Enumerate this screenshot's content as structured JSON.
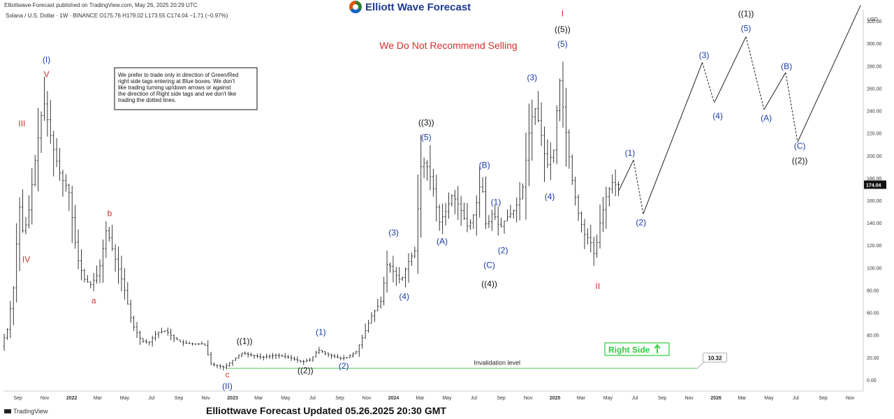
{
  "header": {
    "published": "Elliottwave-Forecast published on TradingView.com, May 26, 2025 20:29 UTC",
    "symbol_line": "Solana / U.S. Dollar · 1W · BINANCE  O175.76  H179.02  L173.55  C174.04  −1.71 (−0.97%)",
    "logo_text": "Elliott Wave Forecast"
  },
  "footer": {
    "title": "Elliottwave Forecast Updated 05.26.2025 20:30 GMT",
    "platform": "TradingView"
  },
  "colors": {
    "candle": "#222222",
    "red_label": "#d32f2f",
    "blue_label": "#1a3aa8",
    "black_label": "#111111",
    "invalidation_line": "#7bd67b",
    "right_side": "#2ecc40"
  },
  "chart_data": {
    "type": "candlestick",
    "y_axis_unit": "USD",
    "y_ticks": [
      "0.00",
      "20.00",
      "40.00",
      "60.00",
      "80.00",
      "100.00",
      "120.00",
      "140.00",
      "160.00",
      "180.00",
      "200.00",
      "220.00",
      "240.00",
      "260.00",
      "280.00",
      "300.00",
      "320.00"
    ],
    "ylim": [
      -10,
      330
    ],
    "x_ticks": [
      "Sep",
      "Nov",
      "2022",
      "Mar",
      "May",
      "Jul",
      "Sep",
      "Nov",
      "2023",
      "Mar",
      "May",
      "Jul",
      "Sep",
      "Nov",
      "2024",
      "Mar",
      "May",
      "Jul",
      "Sep",
      "Nov",
      "2025",
      "Mar",
      "May",
      "Jul",
      "Sep",
      "Nov",
      "2026",
      "Mar",
      "May",
      "Jul",
      "Sep",
      "Nov"
    ],
    "x_tick_dates": [
      "2021-09-01",
      "2021-11-01",
      "2022-01-01",
      "2022-03-01",
      "2022-05-01",
      "2022-07-01",
      "2022-09-01",
      "2022-11-01",
      "2023-01-01",
      "2023-03-01",
      "2023-05-01",
      "2023-07-01",
      "2023-09-01",
      "2023-11-01",
      "2024-01-01",
      "2024-03-01",
      "2024-05-01",
      "2024-07-01",
      "2024-09-01",
      "2024-11-01",
      "2025-01-01",
      "2025-03-01",
      "2025-05-01",
      "2025-07-01",
      "2025-09-01",
      "2025-11-01",
      "2026-01-01",
      "2026-03-01",
      "2026-05-01",
      "2026-07-01",
      "2026-09-01",
      "2026-11-01"
    ],
    "xlim": [
      "2021-08-01",
      "2026-12-01"
    ],
    "last_price": "174.04",
    "price_path": [
      [
        "2021-08-01",
        30
      ],
      [
        "2021-08-15",
        45
      ],
      [
        "2021-09-01",
        90
      ],
      [
        "2021-09-10",
        160
      ],
      [
        "2021-09-20",
        130
      ],
      [
        "2021-10-01",
        145
      ],
      [
        "2021-10-15",
        190
      ],
      [
        "2021-11-05",
        250
      ],
      [
        "2021-11-25",
        210
      ],
      [
        "2021-12-15",
        180
      ],
      [
        "2022-01-01",
        170
      ],
      [
        "2022-01-20",
        110
      ],
      [
        "2022-02-05",
        90
      ],
      [
        "2022-02-20",
        85
      ],
      [
        "2022-03-10",
        95
      ],
      [
        "2022-03-28",
        135
      ],
      [
        "2022-04-15",
        110
      ],
      [
        "2022-05-05",
        85
      ],
      [
        "2022-05-25",
        50
      ],
      [
        "2022-06-15",
        35
      ],
      [
        "2022-07-01",
        33
      ],
      [
        "2022-07-20",
        42
      ],
      [
        "2022-08-10",
        44
      ],
      [
        "2022-08-25",
        38
      ],
      [
        "2022-09-15",
        33
      ],
      [
        "2022-10-10",
        32
      ],
      [
        "2022-11-05",
        32
      ],
      [
        "2022-11-20",
        14
      ],
      [
        "2022-12-20",
        11
      ],
      [
        "2023-01-10",
        18
      ],
      [
        "2023-01-28",
        24
      ],
      [
        "2023-02-20",
        22
      ],
      [
        "2023-03-15",
        20
      ],
      [
        "2023-04-15",
        22
      ],
      [
        "2023-05-15",
        20
      ],
      [
        "2023-06-15",
        16
      ],
      [
        "2023-07-05",
        18
      ],
      [
        "2023-07-20",
        27
      ],
      [
        "2023-08-15",
        22
      ],
      [
        "2023-09-10",
        19
      ],
      [
        "2023-09-25",
        20
      ],
      [
        "2023-10-15",
        25
      ],
      [
        "2023-11-01",
        40
      ],
      [
        "2023-11-20",
        58
      ],
      [
        "2023-12-10",
        70
      ],
      [
        "2023-12-25",
        105
      ],
      [
        "2024-01-10",
        95
      ],
      [
        "2024-01-25",
        88
      ],
      [
        "2024-02-10",
        105
      ],
      [
        "2024-02-25",
        115
      ],
      [
        "2024-03-10",
        190
      ],
      [
        "2024-03-20",
        195
      ],
      [
        "2024-04-05",
        175
      ],
      [
        "2024-04-20",
        140
      ],
      [
        "2024-05-05",
        150
      ],
      [
        "2024-05-20",
        165
      ],
      [
        "2024-06-05",
        155
      ],
      [
        "2024-06-25",
        135
      ],
      [
        "2024-07-10",
        150
      ],
      [
        "2024-07-25",
        180
      ],
      [
        "2024-08-05",
        135
      ],
      [
        "2024-08-20",
        150
      ],
      [
        "2024-09-05",
        135
      ],
      [
        "2024-09-20",
        145
      ],
      [
        "2024-10-05",
        150
      ],
      [
        "2024-10-25",
        165
      ],
      [
        "2024-11-10",
        220
      ],
      [
        "2024-11-22",
        245
      ],
      [
        "2024-12-05",
        225
      ],
      [
        "2024-12-20",
        190
      ],
      [
        "2025-01-05",
        205
      ],
      [
        "2025-01-18",
        270
      ],
      [
        "2025-01-30",
        230
      ],
      [
        "2025-02-15",
        180
      ],
      [
        "2025-03-01",
        150
      ],
      [
        "2025-03-15",
        130
      ],
      [
        "2025-03-28",
        125
      ],
      [
        "2025-04-08",
        110
      ],
      [
        "2025-04-20",
        140
      ],
      [
        "2025-05-05",
        165
      ],
      [
        "2025-05-18",
        176
      ],
      [
        "2025-05-26",
        174
      ]
    ],
    "wave_labels": [
      {
        "text": "(I)",
        "date": "2021-11-05",
        "price": 283,
        "color": "blue"
      },
      {
        "text": "V",
        "date": "2021-11-05",
        "price": 270,
        "color": "red"
      },
      {
        "text": "III",
        "date": "2021-09-10",
        "price": 226,
        "color": "red"
      },
      {
        "text": "IV",
        "date": "2021-09-20",
        "price": 105,
        "color": "red"
      },
      {
        "text": "b",
        "date": "2022-03-28",
        "price": 146,
        "color": "red"
      },
      {
        "text": "a",
        "date": "2022-02-20",
        "price": 68,
        "color": "red"
      },
      {
        "text": "c",
        "date": "2022-12-20",
        "price": 2,
        "color": "red"
      },
      {
        "text": "(II)",
        "date": "2022-12-20",
        "price": -8,
        "color": "blue"
      },
      {
        "text": "((1))",
        "date": "2023-01-28",
        "price": 32,
        "color": "black"
      },
      {
        "text": "((2))",
        "date": "2023-06-15",
        "price": 6,
        "color": "black"
      },
      {
        "text": "(1)",
        "date": "2023-07-20",
        "price": 40,
        "color": "blue"
      },
      {
        "text": "(2)",
        "date": "2023-09-10",
        "price": 10,
        "color": "blue"
      },
      {
        "text": "(3)",
        "date": "2024-01-01",
        "price": 129,
        "color": "blue"
      },
      {
        "text": "(4)",
        "date": "2024-01-25",
        "price": 72,
        "color": "blue"
      },
      {
        "text": "((3))",
        "date": "2024-03-15",
        "price": 227,
        "color": "black"
      },
      {
        "text": "(5)",
        "date": "2024-03-15",
        "price": 214,
        "color": "blue"
      },
      {
        "text": "(A)",
        "date": "2024-04-20",
        "price": 121,
        "color": "blue"
      },
      {
        "text": "(B)",
        "date": "2024-07-25",
        "price": 189,
        "color": "blue"
      },
      {
        "text": "(C)",
        "date": "2024-08-05",
        "price": 100,
        "color": "blue"
      },
      {
        "text": "((4))",
        "date": "2024-08-05",
        "price": 83,
        "color": "black"
      },
      {
        "text": "(1)",
        "date": "2024-08-20",
        "price": 156,
        "color": "blue"
      },
      {
        "text": "(2)",
        "date": "2024-09-05",
        "price": 113,
        "color": "blue"
      },
      {
        "text": "(3)",
        "date": "2024-11-10",
        "price": 267,
        "color": "blue"
      },
      {
        "text": "(4)",
        "date": "2024-12-20",
        "price": 161,
        "color": "blue"
      },
      {
        "text": "I",
        "date": "2025-01-18",
        "price": 324,
        "color": "red"
      },
      {
        "text": "((5))",
        "date": "2025-01-18",
        "price": 310,
        "color": "black"
      },
      {
        "text": "(5)",
        "date": "2025-01-18",
        "price": 297,
        "color": "blue"
      },
      {
        "text": "II",
        "date": "2025-04-08",
        "price": 81,
        "color": "red"
      },
      {
        "text": "(1)",
        "date": "2025-06-20",
        "price": 200,
        "color": "blue"
      },
      {
        "text": "(2)",
        "date": "2025-07-15",
        "price": 138,
        "color": "blue"
      },
      {
        "text": "(3)",
        "date": "2025-12-05",
        "price": 287,
        "color": "blue"
      },
      {
        "text": "(4)",
        "date": "2026-01-05",
        "price": 233,
        "color": "blue"
      },
      {
        "text": "((1))",
        "date": "2026-03-10",
        "price": 324,
        "color": "black"
      },
      {
        "text": "(5)",
        "date": "2026-03-10",
        "price": 311,
        "color": "blue"
      },
      {
        "text": "(A)",
        "date": "2026-04-25",
        "price": 231,
        "color": "blue"
      },
      {
        "text": "(B)",
        "date": "2026-06-10",
        "price": 277,
        "color": "blue"
      },
      {
        "text": "(C)",
        "date": "2026-07-10",
        "price": 206,
        "color": "blue"
      },
      {
        "text": "((2))",
        "date": "2026-07-10",
        "price": 193,
        "color": "black"
      }
    ],
    "projection": {
      "segments": [
        {
          "style": "solid",
          "points": [
            [
              "2025-05-26",
              169
            ],
            [
              "2025-06-28",
              196
            ]
          ]
        },
        {
          "style": "dashed",
          "points": [
            [
              "2025-06-28",
              196
            ],
            [
              "2025-07-20",
              148
            ]
          ]
        },
        {
          "style": "solid",
          "points": [
            [
              "2025-07-20",
              148
            ],
            [
              "2025-12-01",
              283
            ]
          ]
        },
        {
          "style": "dashed",
          "points": [
            [
              "2025-12-01",
              283
            ],
            [
              "2025-12-28",
              247
            ]
          ]
        },
        {
          "style": "solid",
          "points": [
            [
              "2025-12-28",
              247
            ],
            [
              "2026-03-10",
              306
            ]
          ]
        },
        {
          "style": "dashed",
          "points": [
            [
              "2026-03-10",
              306
            ],
            [
              "2026-04-20",
              241
            ]
          ]
        },
        {
          "style": "solid",
          "points": [
            [
              "2026-04-20",
              241
            ],
            [
              "2026-06-08",
              274
            ]
          ]
        },
        {
          "style": "dashed",
          "points": [
            [
              "2026-06-08",
              274
            ],
            [
              "2026-07-05",
              212
            ]
          ]
        },
        {
          "style": "solid",
          "points": [
            [
              "2026-07-05",
              212
            ],
            [
              "2026-11-25",
              334
            ]
          ]
        }
      ]
    },
    "invalidation": {
      "label": "Invalidation level",
      "value_label": "10.32",
      "price": 10.32,
      "start": "2022-12-20",
      "end": "2025-11-20",
      "label_date": "2024-07-01"
    },
    "right_side_label": "Right Side",
    "annotations": {
      "disclaimer": "We Do Not Recommend Selling",
      "note_lines": [
        "We prefer to trade only in direction of Green/Red",
        "right side tags entering at Blue boxes. We don't",
        "like trading turning up/down arrows or against",
        "the direction of Right side tags and we don't like",
        "trading the dotted lines."
      ]
    }
  }
}
